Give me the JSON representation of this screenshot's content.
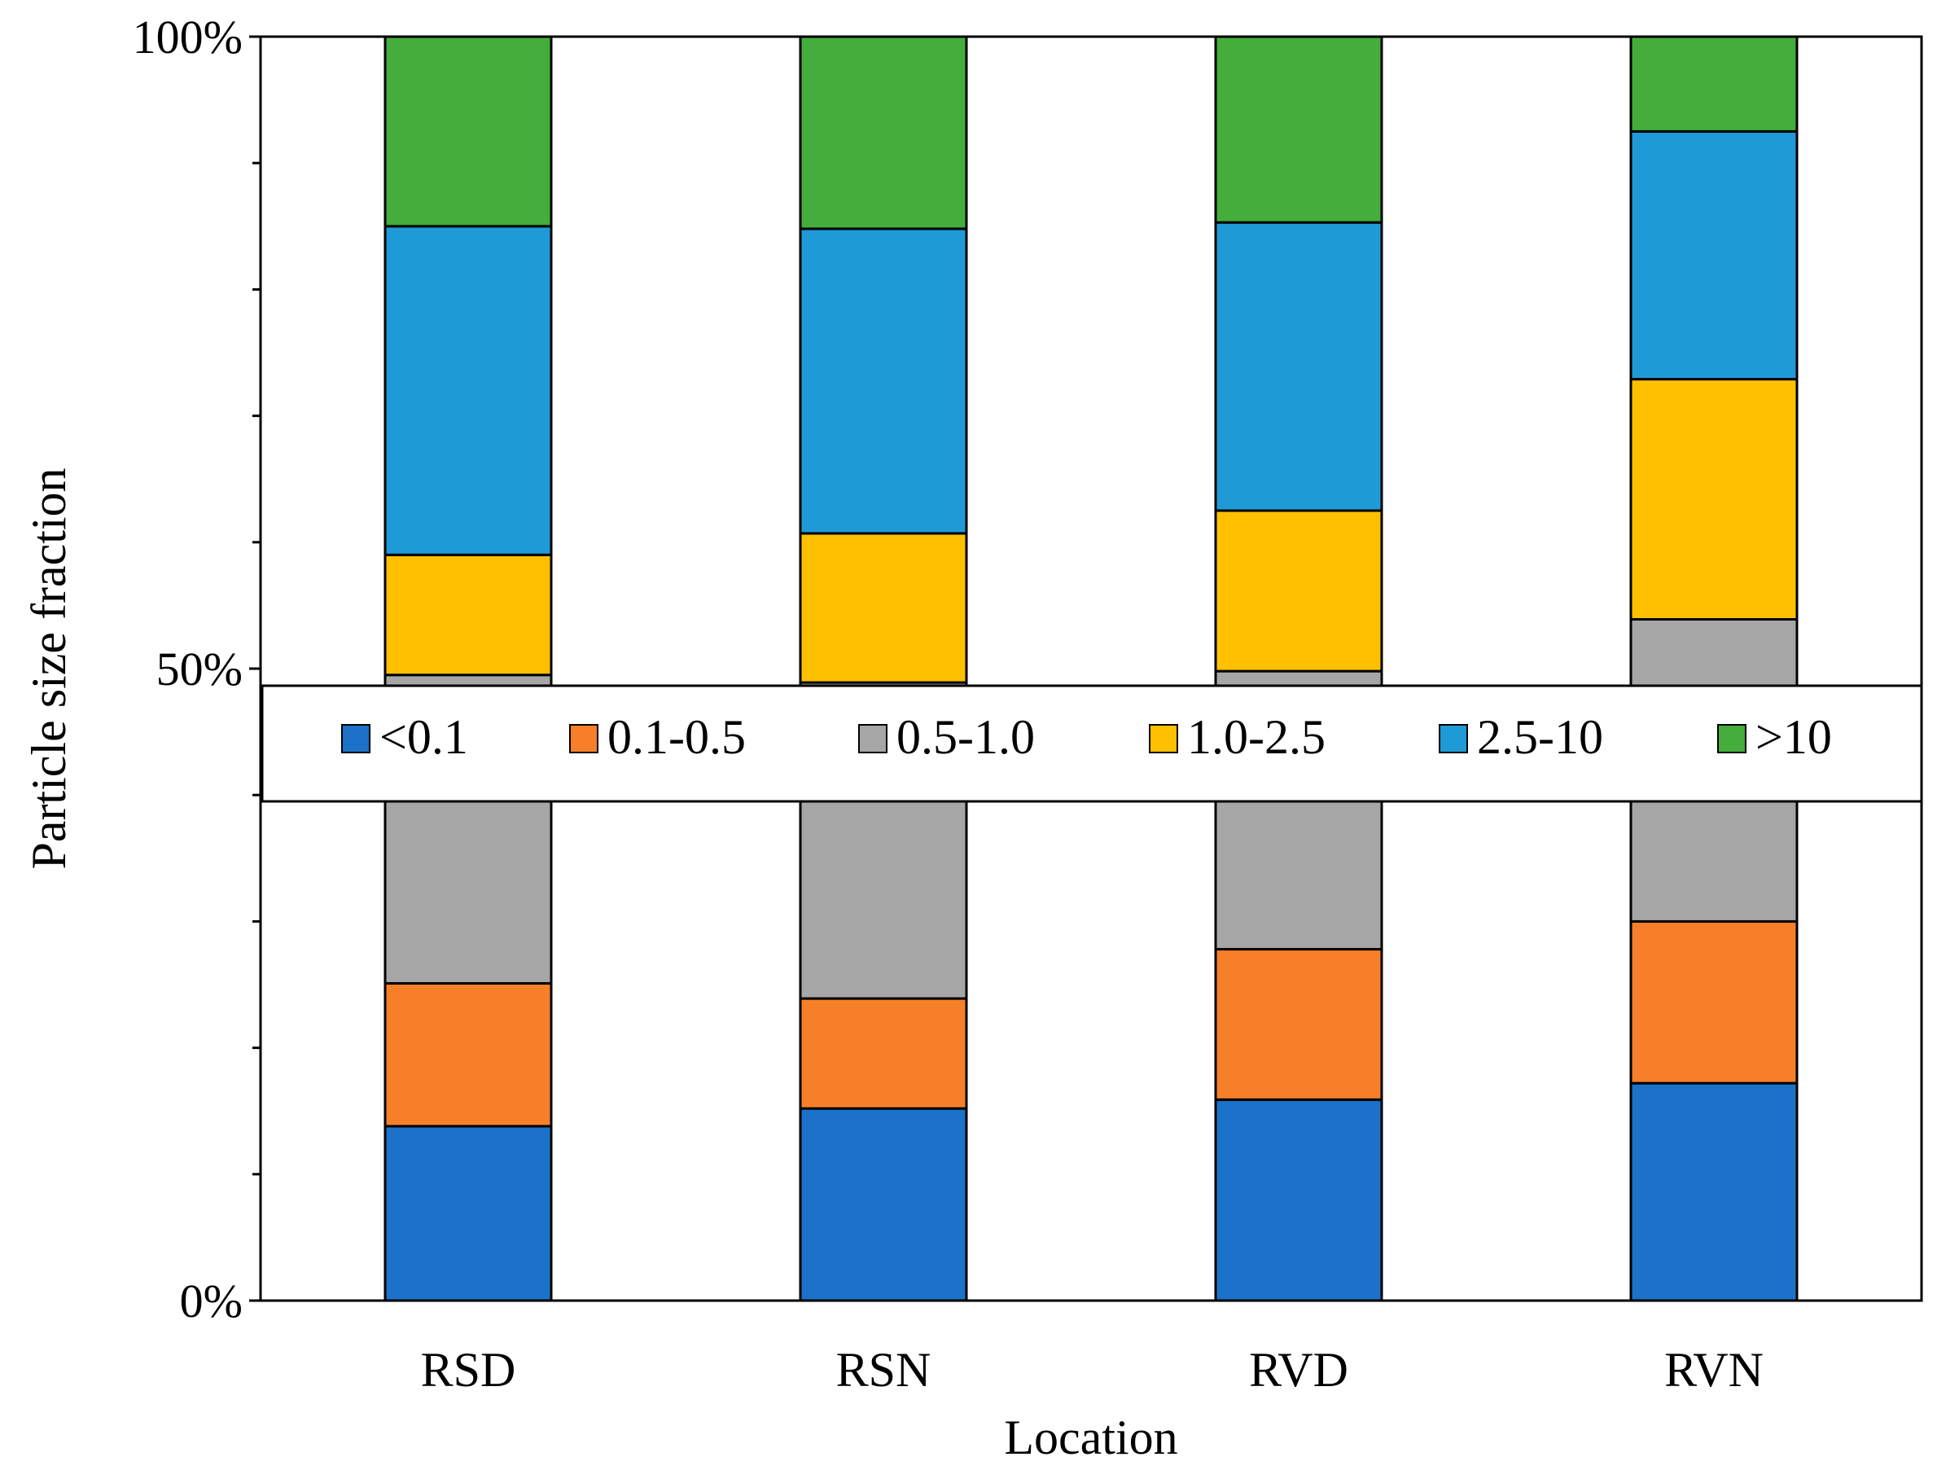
{
  "chart_data": {
    "type": "bar",
    "stacked": true,
    "percent": true,
    "title": "",
    "xlabel": "Location",
    "ylabel": "Particle size fraction",
    "ylim": [
      0,
      100
    ],
    "yticks": [
      {
        "value": 0,
        "label": "0%"
      },
      {
        "value": 50,
        "label": "50%"
      },
      {
        "value": 100,
        "label": "100%"
      }
    ],
    "minor_ticks": [
      10,
      20,
      30,
      40,
      60,
      70,
      80,
      90
    ],
    "categories": [
      "RSD",
      "RSN",
      "RVD",
      "RVN"
    ],
    "legend_position": "center",
    "series": [
      {
        "name": "<0.1",
        "color": "#1B72C8",
        "values": [
          13.8,
          15.2,
          15.9,
          17.2
        ]
      },
      {
        "name": "0.1-0.5",
        "color": "#F77F2A",
        "values": [
          11.3,
          8.7,
          11.9,
          12.8
        ]
      },
      {
        "name": "0.5-1.0",
        "color": "#A6A6A6",
        "values": [
          24.4,
          25.0,
          22.0,
          23.9
        ]
      },
      {
        "name": "1.0-2.5",
        "color": "#FFC000",
        "values": [
          9.5,
          11.8,
          12.7,
          19.0
        ]
      },
      {
        "name": "2.5-10",
        "color": "#1E9BD7",
        "values": [
          26.0,
          24.1,
          22.8,
          19.6
        ]
      },
      {
        "name": ">10",
        "color": "#44AD3B",
        "values": [
          15.0,
          15.2,
          14.7,
          7.5
        ]
      }
    ]
  }
}
